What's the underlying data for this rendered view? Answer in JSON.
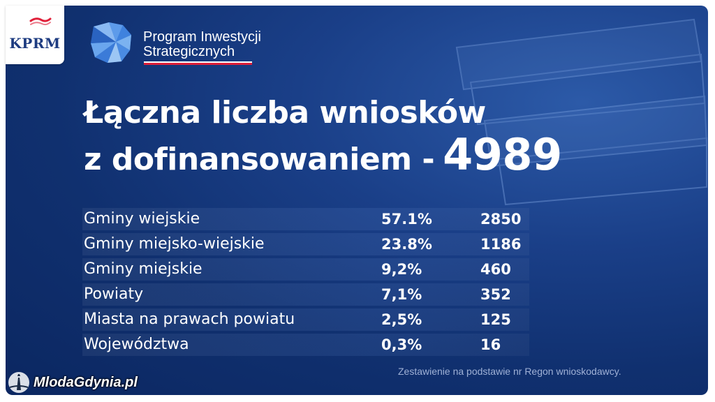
{
  "logo": {
    "kprm_text": "KPRM"
  },
  "program": {
    "line1": "Program Inwestycji",
    "line2": "Strategicznych"
  },
  "headline": {
    "line1": "Łączna liczba wniosków",
    "line2_prefix": "z dofinansowaniem -",
    "total": "4989"
  },
  "table": {
    "rows": [
      {
        "label": "Gminy wiejskie",
        "percent": "57.1%",
        "count": "2850"
      },
      {
        "label": "Gminy miejsko-wiejskie",
        "percent": "23.8%",
        "count": "1186"
      },
      {
        "label": "Gminy miejskie",
        "percent": "9,2%",
        "count": "460"
      },
      {
        "label": "Powiaty",
        "percent": "7,1%",
        "count": "352"
      },
      {
        "label": "Miasta na prawach powiatu",
        "percent": "2,5%",
        "count": "125"
      },
      {
        "label": "Województwa",
        "percent": "0,3%",
        "count": "16"
      }
    ]
  },
  "footer": {
    "source_note": "Zestawienie na podstawie nr Regon wnioskodawcy."
  },
  "watermark": {
    "text": "MlodaGdynia.pl"
  },
  "colors": {
    "background": "#10306f",
    "accent_red": "#e0203a",
    "kprm_blue": "#1d3b80"
  }
}
